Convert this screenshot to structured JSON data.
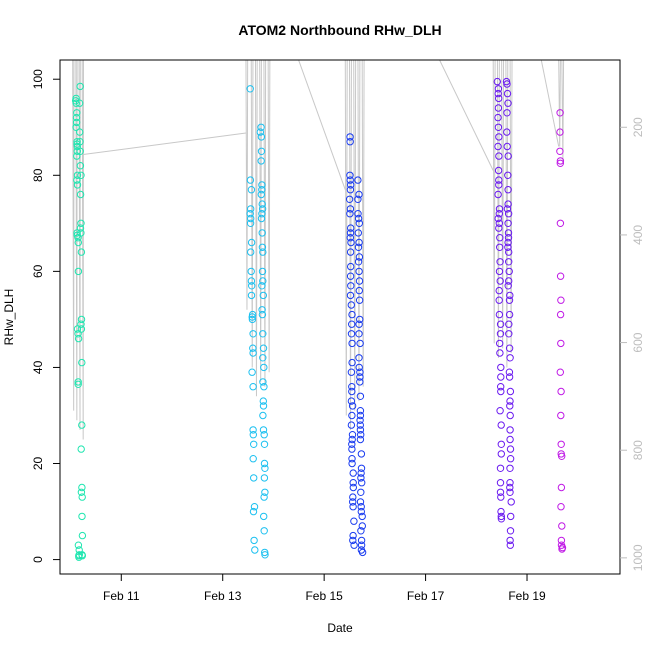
{
  "chart_data": {
    "type": "scatter",
    "title": "ATOM2 Northbound RHw_DLH",
    "xlabel": "Date",
    "ylabel": "RHw_DLH",
    "xlim": [
      "2014-02-09T19:00",
      "2014-02-20T20:00"
    ],
    "ylim": [
      -3,
      104
    ],
    "x_ticks": [
      {
        "date": "2014-02-11",
        "label": "Feb 11"
      },
      {
        "date": "2014-02-13",
        "label": "Feb 13"
      },
      {
        "date": "2014-02-15",
        "label": "Feb 15"
      },
      {
        "date": "2014-02-17",
        "label": "Feb 17"
      },
      {
        "date": "2014-02-19",
        "label": "Feb 19"
      }
    ],
    "y_ticks": [
      0,
      20,
      40,
      60,
      80,
      100
    ],
    "secondary_axis": {
      "side": "right",
      "color": "#bdbdbd",
      "ticks": [
        200,
        400,
        600,
        800,
        1000
      ],
      "range_top_to_bottom": [
        75,
        1030
      ]
    },
    "marker": "open-circle",
    "color_scale": [
      "#00ffcc",
      "#00c8ff",
      "#0000ff",
      "#7000ff",
      "#cc00ff"
    ],
    "series": [
      {
        "color": "#1fe6b0",
        "clusters": [
          {
            "t": "2014-02-10T02:00",
            "span_hours": 2.5,
            "values": [
              96,
              95.5,
              95,
              93,
              92,
              91,
              90,
              87,
              86.5,
              86,
              85,
              84,
              80,
              79,
              78,
              68,
              67.5,
              67,
              66,
              60,
              48,
              47,
              46,
              37,
              36.5,
              3,
              2,
              1,
              0.8,
              0.5
            ]
          },
          {
            "t": "2014-02-10T04:00",
            "span_hours": 2.0,
            "values": [
              98.5,
              95,
              89,
              87,
              85,
              82,
              80,
              76,
              70,
              69,
              68,
              64,
              50,
              49,
              48,
              41,
              28,
              23,
              15,
              14,
              13,
              9,
              5,
              1,
              0.8
            ]
          }
        ]
      },
      {
        "color": "#1cc0f0",
        "clusters": [
          {
            "t": "2014-02-13T12:30",
            "span_hours": 3.0,
            "values": [
              98,
              79,
              77,
              73,
              72,
              71,
              70,
              66,
              64,
              60,
              58,
              57,
              55,
              51,
              50.5,
              50,
              47,
              44,
              43,
              39,
              36,
              27,
              26,
              24,
              21,
              17,
              11,
              10,
              4,
              2
            ]
          },
          {
            "t": "2014-02-13T17:30",
            "span_hours": 3.0,
            "values": [
              90,
              89,
              88,
              85,
              83,
              78,
              77,
              76,
              74,
              73,
              72,
              71,
              68,
              65,
              64,
              60,
              58,
              57,
              55,
              52,
              51,
              47,
              44,
              42,
              40,
              37,
              36,
              33,
              32,
              30,
              27,
              26,
              24,
              20,
              19,
              17,
              14,
              13,
              9,
              6,
              1.5,
              1
            ]
          }
        ]
      },
      {
        "color": "#1a3cf0",
        "clusters": [
          {
            "t": "2014-02-15T11:30",
            "span_hours": 3.0,
            "values": [
              88,
              87,
              80,
              79,
              78,
              77,
              75,
              73,
              72,
              69,
              68,
              67,
              66,
              64,
              61,
              59,
              57,
              55,
              53,
              51,
              49,
              47,
              45,
              41,
              39,
              36,
              35,
              33,
              32,
              30,
              28,
              26,
              25,
              24,
              23,
              21,
              20,
              18,
              16,
              15,
              13,
              12,
              11,
              8,
              5,
              4,
              3
            ]
          },
          {
            "t": "2014-02-15T15:30",
            "span_hours": 3.0,
            "values": [
              79,
              76,
              75,
              72,
              71,
              70,
              68,
              66,
              65,
              63,
              62,
              60,
              58,
              56,
              54,
              50,
              49,
              47,
              45,
              42,
              40,
              39,
              38,
              37,
              34,
              31,
              30,
              29,
              28,
              27,
              26,
              25,
              22,
              19,
              18,
              17,
              16,
              14,
              12,
              11,
              10,
              9,
              7,
              6,
              4,
              3,
              2,
              1.5
            ]
          }
        ]
      },
      {
        "color": "#6a1af0",
        "clusters": [
          {
            "t": "2014-02-18T09:30",
            "span_hours": 3.0,
            "values": [
              99.5,
              98,
              97,
              96,
              94,
              92,
              90,
              88,
              86,
              84,
              81,
              79,
              78,
              76,
              73,
              72,
              71,
              70,
              69,
              67,
              65,
              62,
              60,
              58,
              56,
              54,
              51,
              49,
              47,
              45,
              43,
              40,
              38,
              36,
              35,
              31,
              28,
              24,
              22,
              19,
              16,
              14,
              13,
              10,
              9,
              8.5
            ]
          },
          {
            "t": "2014-02-18T14:00",
            "span_hours": 3.0,
            "values": [
              99.5,
              99,
              97,
              95,
              93,
              89,
              86,
              84,
              80,
              77,
              74,
              73,
              72,
              70,
              68,
              67,
              66,
              65,
              64,
              62,
              60,
              58,
              57,
              55,
              54,
              51,
              49,
              47,
              44,
              42,
              39,
              38,
              35,
              33,
              32,
              30,
              27,
              25,
              23,
              21,
              19,
              16,
              15,
              14,
              12,
              9,
              6,
              4,
              3
            ]
          }
        ]
      },
      {
        "color": "#c01ae6",
        "clusters": [
          {
            "t": "2014-02-19T15:00",
            "span_hours": 2.0,
            "values": [
              93,
              89,
              85,
              83,
              82.5,
              70,
              59,
              54,
              51,
              45,
              39,
              35,
              30,
              24,
              22,
              21.5,
              15,
              11,
              7,
              4,
              3,
              2.5,
              2.2
            ]
          }
        ]
      }
    ],
    "profiles": {
      "color": "#c8c8c8",
      "descents": [
        {
          "t": "2014-02-10T01:00",
          "dt_hours": 0.6,
          "bottom": 31
        },
        {
          "t": "2014-02-10T02:30",
          "dt_hours": 0.6,
          "bottom": 29
        },
        {
          "t": "2014-02-10T04:00",
          "dt_hours": 0.6,
          "bottom": 27
        },
        {
          "t": "2014-02-10T05:30",
          "dt_hours": 0.6,
          "bottom": 25
        },
        {
          "t": "2014-02-13T11:00",
          "dt_hours": 0.8,
          "bottom": 52
        },
        {
          "t": "2014-02-13T13:30",
          "dt_hours": 0.8,
          "bottom": 40
        },
        {
          "t": "2014-02-13T15:30",
          "dt_hours": 0.8,
          "bottom": 34
        },
        {
          "t": "2014-02-13T17:30",
          "dt_hours": 0.8,
          "bottom": 37
        },
        {
          "t": "2014-02-13T19:30",
          "dt_hours": 0.8,
          "bottom": 36
        },
        {
          "t": "2014-02-13T21:30",
          "dt_hours": 0.8,
          "bottom": 39
        },
        {
          "t": "2014-02-15T10:00",
          "dt_hours": 0.9,
          "bottom": 30
        },
        {
          "t": "2014-02-15T12:00",
          "dt_hours": 0.9,
          "bottom": 27
        },
        {
          "t": "2014-02-15T14:00",
          "dt_hours": 0.9,
          "bottom": 31
        },
        {
          "t": "2014-02-15T16:00",
          "dt_hours": 0.9,
          "bottom": 33
        },
        {
          "t": "2014-02-15T18:00",
          "dt_hours": 0.9,
          "bottom": 36
        },
        {
          "t": "2014-02-18T08:00",
          "dt_hours": 0.9,
          "bottom": 45
        },
        {
          "t": "2014-02-18T10:00",
          "dt_hours": 0.9,
          "bottom": 42
        },
        {
          "t": "2014-02-18T12:00",
          "dt_hours": 0.9,
          "bottom": 44
        },
        {
          "t": "2014-02-18T14:00",
          "dt_hours": 0.9,
          "bottom": 40
        },
        {
          "t": "2014-02-18T16:00",
          "dt_hours": 0.9,
          "bottom": 43
        },
        {
          "t": "2014-02-19T15:00",
          "dt_hours": 0.8,
          "bottom": 86
        },
        {
          "t": "2014-02-19T16:30",
          "dt_hours": 0.8,
          "bottom": 83
        }
      ],
      "transits": [
        {
          "from_t": "2014-02-10T05:30",
          "from_y": 84.3,
          "to_t": "2014-02-13T11:00",
          "to_y": 88.8
        },
        {
          "from_t": "2014-02-14T07:00",
          "from_y": 110,
          "to_t": "2014-02-15T10:00",
          "to_y": 77
        },
        {
          "from_t": "2014-02-17T00:00",
          "from_y": 110,
          "to_t": "2014-02-18T08:00",
          "to_y": 81
        },
        {
          "from_t": "2014-02-19T04:00",
          "from_y": 110,
          "to_t": "2014-02-19T15:00",
          "to_y": 86
        }
      ]
    }
  }
}
